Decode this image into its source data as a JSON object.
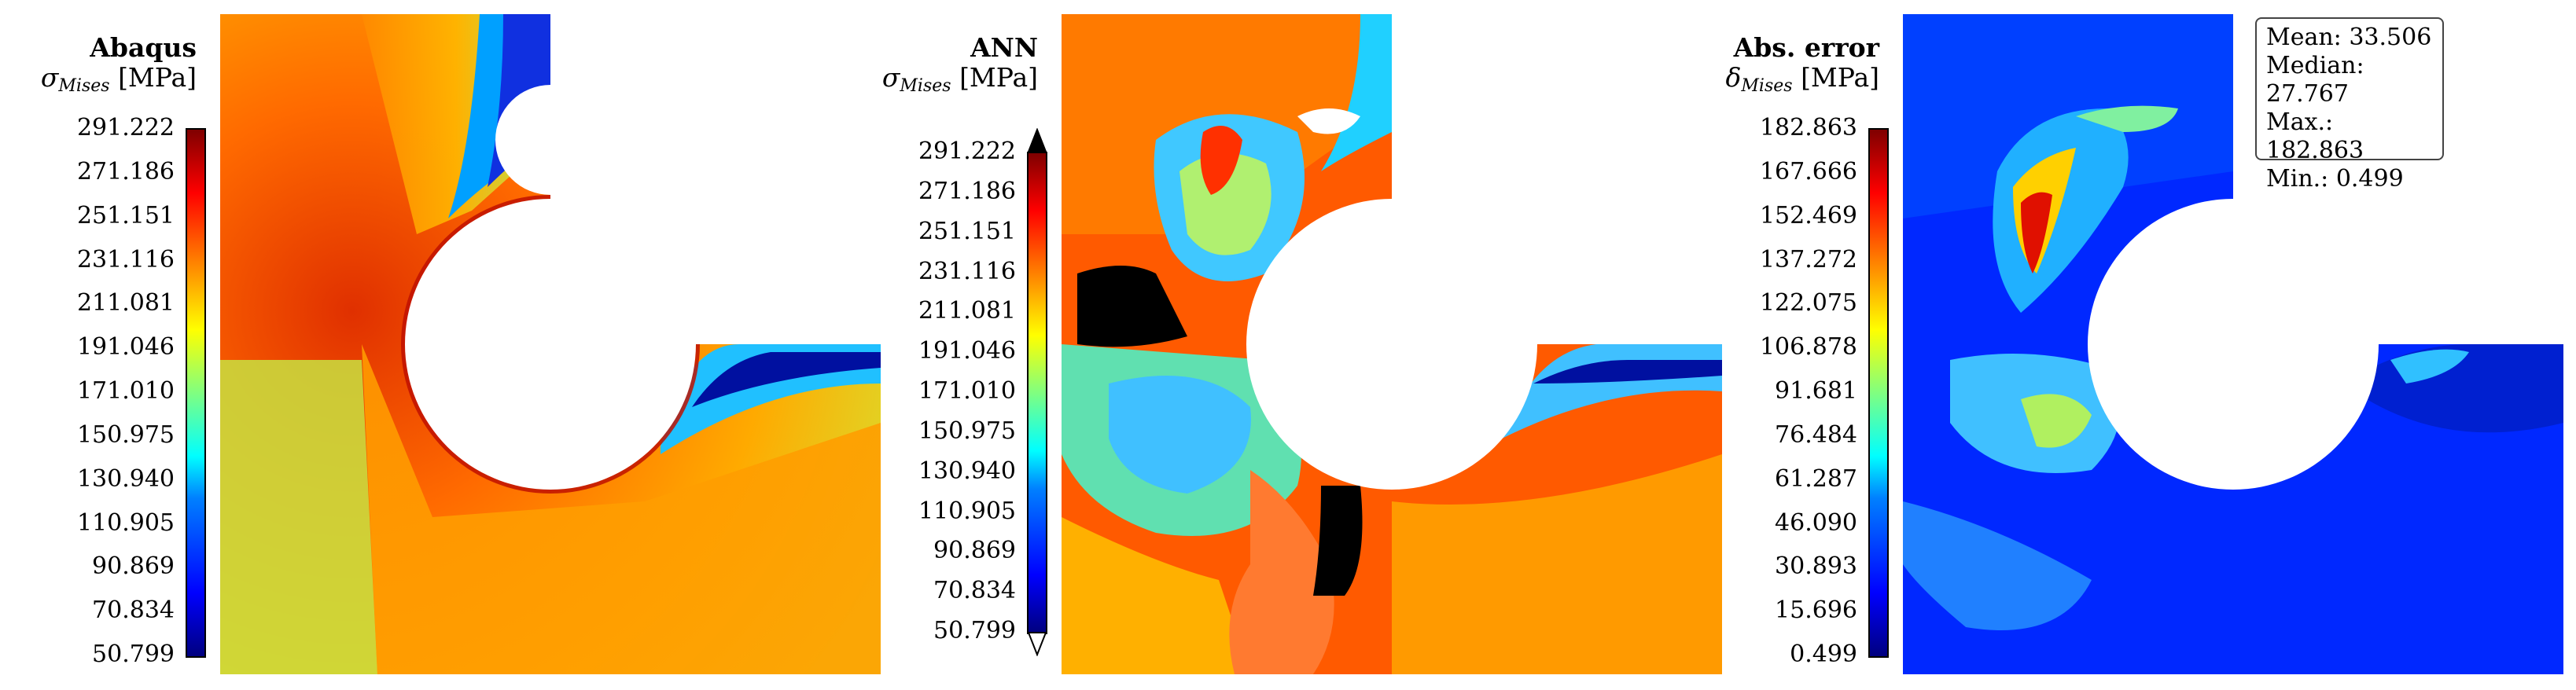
{
  "chart_data": [
    {
      "type": "heatmap",
      "title": "Abaqus",
      "quantity": "σ",
      "quantity_sub": "Mises",
      "unit": "[MPa]",
      "colorbar_ticks": [
        "291.222",
        "271.186",
        "251.151",
        "231.116",
        "211.081",
        "191.046",
        "171.010",
        "150.975",
        "130.940",
        "110.905",
        "90.869",
        "70.834",
        "50.799"
      ],
      "range": [
        50.799,
        291.222
      ],
      "colormap": "jet"
    },
    {
      "type": "heatmap",
      "title": "ANN",
      "quantity": "σ",
      "quantity_sub": "Mises",
      "unit": "[MPa]",
      "colorbar_ticks": [
        "291.222",
        "271.186",
        "251.151",
        "231.116",
        "211.081",
        "191.046",
        "171.010",
        "150.975",
        "130.940",
        "110.905",
        "90.869",
        "70.834",
        "50.799"
      ],
      "range": [
        50.799,
        291.222
      ],
      "colormap": "jet",
      "overflow_color": "#000000",
      "underflow_color": "#ffffff"
    },
    {
      "type": "heatmap",
      "title": "Abs. error",
      "quantity": "δ",
      "quantity_sub": "Mises",
      "unit": "[MPa]",
      "colorbar_ticks": [
        "182.863",
        "167.666",
        "152.469",
        "137.272",
        "122.075",
        "106.878",
        "91.681",
        "76.484",
        "61.287",
        "46.090",
        "30.893",
        "15.696",
        "0.499"
      ],
      "range": [
        0.499,
        182.863
      ],
      "colormap": "jet",
      "stats": [
        "Mean: 33.506",
        "Median: 27.767",
        "Max.: 182.863",
        "Min.: 0.499"
      ]
    }
  ]
}
